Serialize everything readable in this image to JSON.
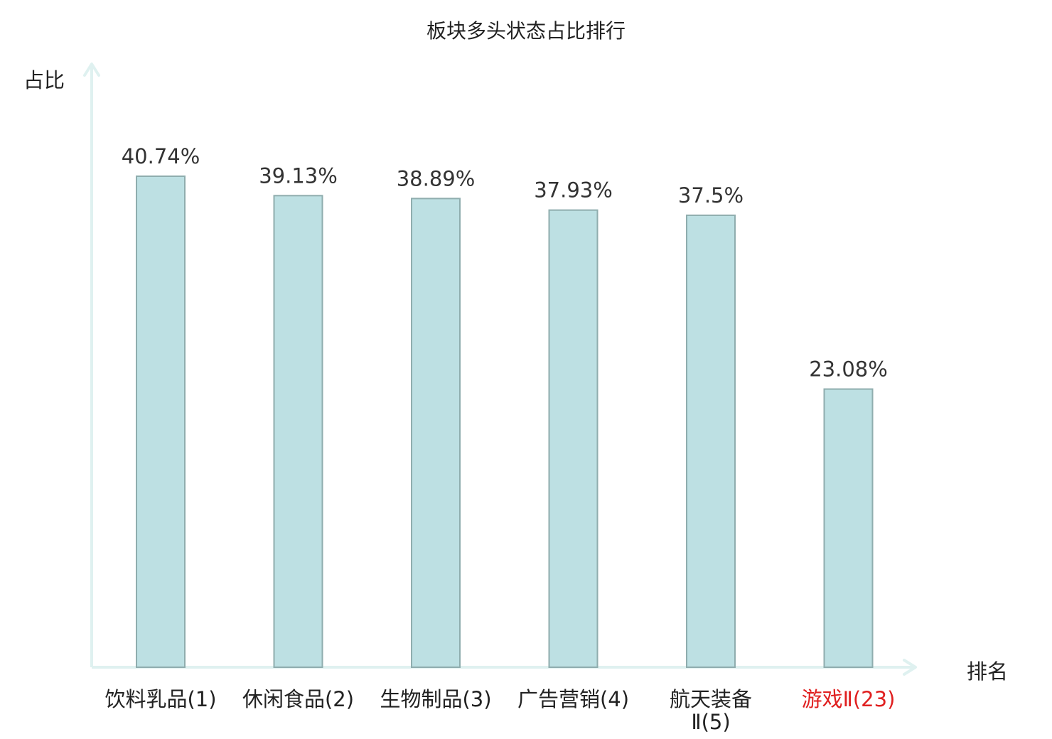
{
  "chart_data": {
    "type": "bar",
    "title": "板块多头状态占比排行",
    "ylabel": "占比",
    "xlabel": "排名",
    "categories": [
      "饮料乳品(1)",
      "休闲食品(2)",
      "生物制品(3)",
      "广告营销(4)",
      "航天装备Ⅱ(5)",
      "游戏Ⅱ(23)"
    ],
    "tick_labels": [
      [
        "饮料乳品(1)"
      ],
      [
        "休闲食品(2)"
      ],
      [
        "生物制品(3)"
      ],
      [
        "广告营销(4)"
      ],
      [
        "航天装备",
        "Ⅱ(5)"
      ],
      [
        "游戏Ⅱ(23)"
      ]
    ],
    "values": [
      40.74,
      39.13,
      38.89,
      37.93,
      37.5,
      23.08
    ],
    "data_labels": [
      "40.74%",
      "39.13%",
      "38.89%",
      "37.93%",
      "37.5%",
      "23.08%"
    ],
    "highlighted_category": "游戏Ⅱ(23)",
    "ylim": [
      0,
      50
    ],
    "grid": false,
    "legend": "none",
    "colors": {
      "bar_fill": "#bde0e3",
      "bar_stroke": "#8fadae",
      "axis": "#dff1f0",
      "tick_label": "#222222",
      "highlight_label": "#e02020",
      "data_label": "#333333"
    }
  }
}
